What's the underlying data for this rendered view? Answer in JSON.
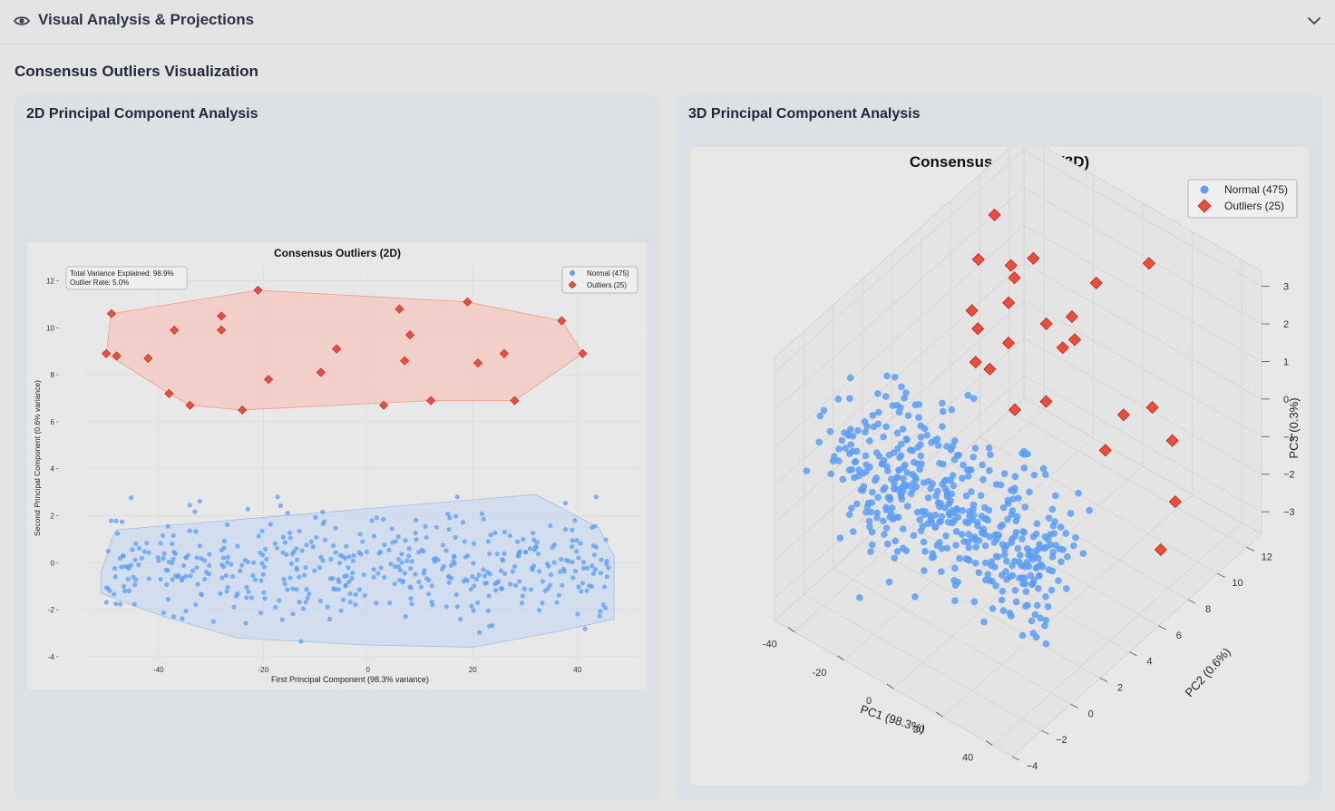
{
  "header": {
    "title": "Visual Analysis & Projections",
    "icon": "eye-icon",
    "toggle_icon": "chevron-down-icon"
  },
  "section": {
    "title": "Consensus Outliers Visualization"
  },
  "panels": {
    "left_title": "2D Principal Component Analysis",
    "right_title": "3D Principal Component Analysis"
  },
  "chart_data": [
    {
      "type": "scatter",
      "title": "Consensus Outliers (2D)",
      "xlabel": "First Principal Component (98.3% variance)",
      "ylabel": "Second Principal Component (0.6% variance)",
      "xlim": [
        -54,
        52
      ],
      "ylim": [
        -4.2,
        12.6
      ],
      "x_ticks": [
        -40,
        -20,
        0,
        20,
        40
      ],
      "y_ticks": [
        -4,
        -2,
        0,
        2,
        4,
        6,
        8,
        10,
        12
      ],
      "grid": true,
      "legend_position": "top-right",
      "annotation": [
        "Total Variance Explained: 98.9%",
        "Outlier Rate: 5.0%"
      ],
      "colors": {
        "normal": "#5b9ef7",
        "outlier": "#f04c3c",
        "normal_hull": "#c6d8ef",
        "outlier_hull": "#f6c7bf"
      },
      "series": [
        {
          "name": "Normal (475)",
          "marker": "circle",
          "count": 475,
          "hull": [
            [
              -48,
              1.4
            ],
            [
              32,
              2.9
            ],
            [
              44,
              1.5
            ],
            [
              47,
              0.3
            ],
            [
              47,
              -2.4
            ],
            [
              37,
              -2.9
            ],
            [
              20,
              -3.6
            ],
            [
              -1,
              -3.5
            ],
            [
              -25,
              -3.2
            ],
            [
              -39,
              -2.3
            ],
            [
              -51,
              -1.3
            ],
            [
              -51,
              -0.4
            ],
            [
              -50,
              0.2
            ],
            [
              -49,
              1.0
            ]
          ]
        },
        {
          "name": "Outliers (25)",
          "marker": "diamond",
          "count": 25,
          "points": [
            [
              -49,
              10.6
            ],
            [
              -50,
              8.9
            ],
            [
              -48,
              8.8
            ],
            [
              -42,
              8.7
            ],
            [
              -37,
              9.9
            ],
            [
              -38,
              7.2
            ],
            [
              -34,
              6.7
            ],
            [
              -28,
              10.5
            ],
            [
              -28,
              9.9
            ],
            [
              -24,
              6.5
            ],
            [
              -21,
              11.6
            ],
            [
              -19,
              7.8
            ],
            [
              -9,
              8.1
            ],
            [
              -6,
              9.1
            ],
            [
              3,
              6.7
            ],
            [
              6,
              10.8
            ],
            [
              7,
              8.6
            ],
            [
              8,
              9.7
            ],
            [
              12,
              6.9
            ],
            [
              19,
              11.1
            ],
            [
              21,
              8.5
            ],
            [
              26,
              8.9
            ],
            [
              28,
              6.9
            ],
            [
              37,
              10.3
            ],
            [
              41,
              8.9
            ]
          ],
          "hull": [
            [
              -49,
              10.6
            ],
            [
              -21,
              11.6
            ],
            [
              19,
              11.1
            ],
            [
              37,
              10.3
            ],
            [
              41,
              8.9
            ],
            [
              28,
              6.9
            ],
            [
              12,
              6.9
            ],
            [
              -24,
              6.5
            ],
            [
              -34,
              6.7
            ],
            [
              -38,
              7.2
            ],
            [
              -50,
              8.9
            ]
          ]
        }
      ]
    },
    {
      "type": "scatter",
      "title": "Consensus Outliers (3D)",
      "xlabel": "PC1 (98.3%)",
      "ylabel": "PC2 (0.6%)",
      "zlabel": "PC3 (0.3%)",
      "xlim": [
        -48,
        48
      ],
      "ylim": [
        -4,
        13
      ],
      "zlim": [
        -3.6,
        3.4
      ],
      "x_ticks": [
        -40,
        -20,
        0,
        20,
        40
      ],
      "y_ticks": [
        -4,
        -2,
        0,
        2,
        4,
        6,
        8,
        10,
        12
      ],
      "z_ticks": [
        -3,
        -2,
        -1,
        0,
        1,
        2,
        3
      ],
      "grid": true,
      "legend_position": "top-right",
      "colors": {
        "normal": "#5b9ef7",
        "outlier": "#f04c3c"
      },
      "series": [
        {
          "name": "Normal (475)",
          "marker": "circle",
          "count": 475
        },
        {
          "name": "Outliers (25)",
          "marker": "diamond",
          "count": 25
        }
      ]
    }
  ]
}
